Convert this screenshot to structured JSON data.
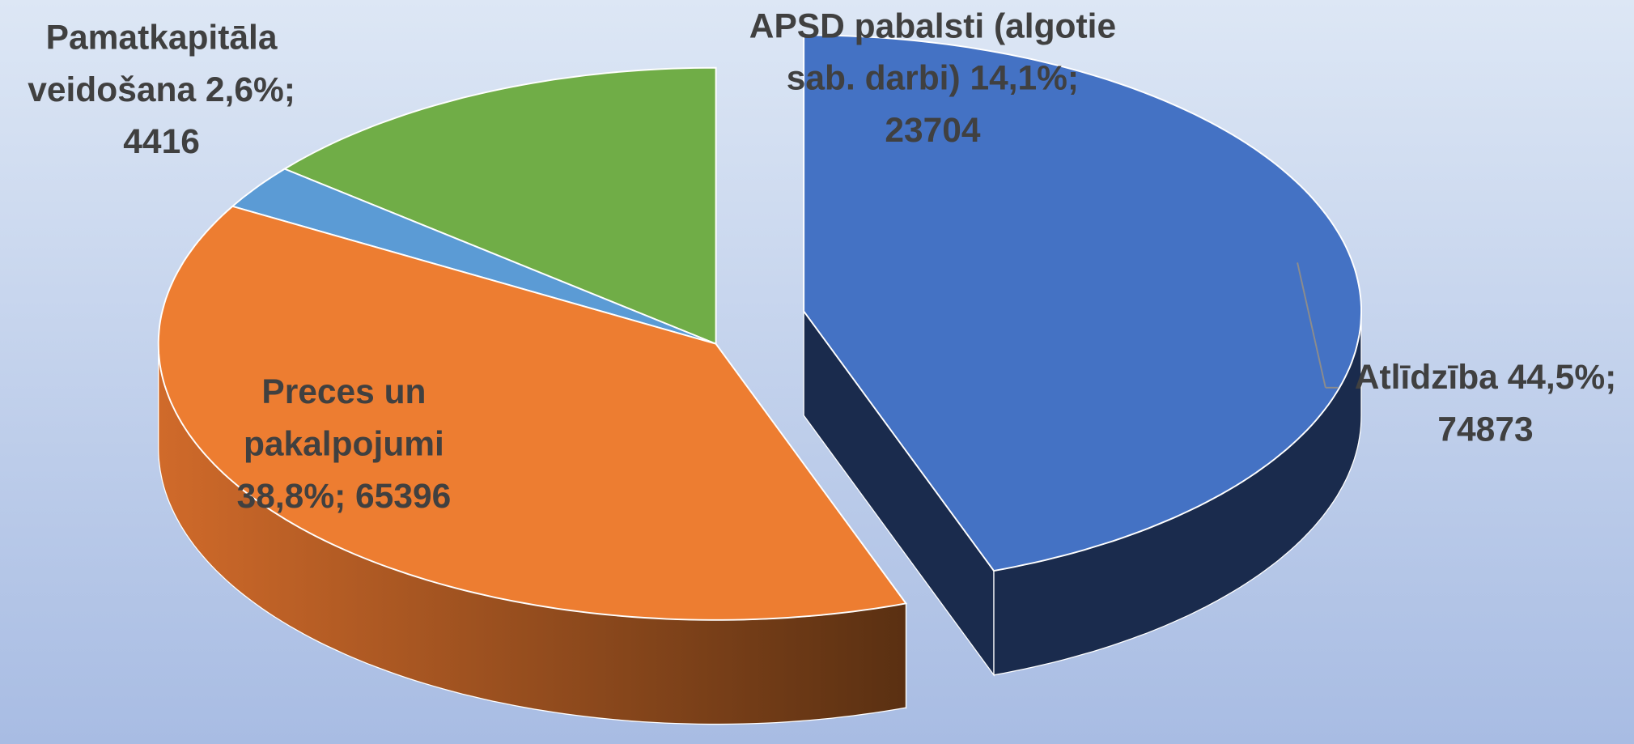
{
  "chart_data": {
    "type": "pie3d",
    "categories": [
      "Atlīdzība",
      "Preces un pakalpojumi",
      "Pamatkapitāla veidošana",
      "APSD pabalsti (algotie sab. darbi)"
    ],
    "values": [
      74873,
      65396,
      4416,
      23704
    ],
    "value_labels": [
      "44,5%; 74873",
      "38,8%; 65396",
      "2,6%; 4416",
      "14,1%; 23704"
    ],
    "colors": [
      "#4472c4",
      "#ed7d31",
      "#5b9bd5",
      "#70ad47"
    ]
  }
}
